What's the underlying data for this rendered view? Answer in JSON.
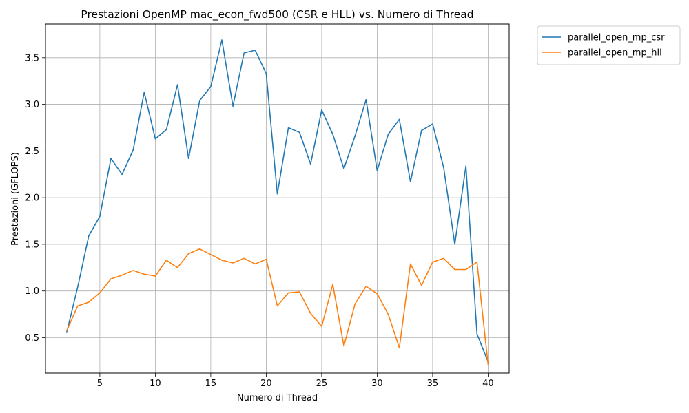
{
  "chart_data": {
    "type": "line",
    "title": "Prestazioni OpenMP mac_econ_fwd500 (CSR e HLL) vs. Numero di Thread",
    "xlabel": "Numero di Thread",
    "ylabel": "Prestazioni (GFLOPS)",
    "xlim": [
      0.1,
      41.9
    ],
    "ylim": [
      0.12,
      3.86
    ],
    "xticks": [
      5,
      10,
      15,
      20,
      25,
      30,
      35,
      40
    ],
    "yticks": [
      0.5,
      1.0,
      1.5,
      2.0,
      2.5,
      3.0,
      3.5
    ],
    "ytick_labels": [
      "0.5",
      "1.0",
      "1.5",
      "2.0",
      "2.5",
      "3.0",
      "3.5"
    ],
    "grid": true,
    "legend_position": "outside upper right",
    "x": [
      2,
      3,
      4,
      5,
      6,
      7,
      8,
      9,
      10,
      11,
      12,
      13,
      14,
      15,
      16,
      17,
      18,
      19,
      20,
      21,
      22,
      23,
      24,
      25,
      26,
      27,
      28,
      29,
      30,
      31,
      32,
      33,
      34,
      35,
      36,
      37,
      38,
      39,
      40
    ],
    "series": [
      {
        "name": "parallel_open_mp_csr",
        "color": "#1f77b4",
        "values": [
          0.55,
          1.04,
          1.59,
          1.8,
          2.42,
          2.25,
          2.51,
          3.13,
          2.63,
          2.73,
          3.21,
          2.42,
          3.04,
          3.19,
          3.69,
          2.98,
          3.55,
          3.58,
          3.33,
          2.04,
          2.75,
          2.7,
          2.36,
          2.94,
          2.68,
          2.31,
          2.66,
          3.05,
          2.29,
          2.68,
          2.84,
          2.17,
          2.72,
          2.79,
          2.32,
          1.5,
          2.34,
          0.54,
          0.24
        ]
      },
      {
        "name": "parallel_open_mp_hll",
        "color": "#ff7f0e",
        "values": [
          0.57,
          0.84,
          0.88,
          0.98,
          1.13,
          1.17,
          1.22,
          1.18,
          1.16,
          1.33,
          1.25,
          1.4,
          1.45,
          1.39,
          1.33,
          1.3,
          1.35,
          1.29,
          1.34,
          0.84,
          0.98,
          0.99,
          0.76,
          0.62,
          1.07,
          0.41,
          0.86,
          1.05,
          0.97,
          0.75,
          0.39,
          1.29,
          1.06,
          1.31,
          1.35,
          1.23,
          1.23,
          1.31,
          0.21
        ]
      }
    ]
  }
}
